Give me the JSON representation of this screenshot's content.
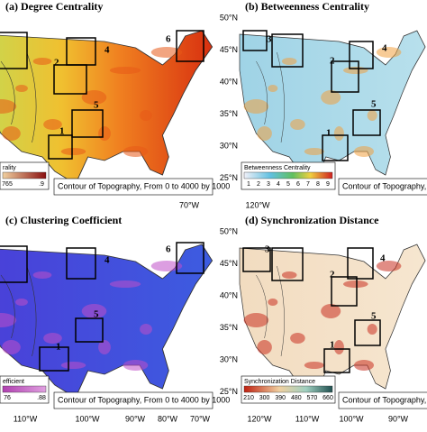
{
  "panels": [
    {
      "title": "(a) Degree Centrality",
      "region_labels": [
        "1",
        "2",
        "4",
        "5",
        "6"
      ],
      "legend": {
        "title": "rality",
        "ticks": [
          "765",
          ".9"
        ]
      },
      "contour_note": "Contour of Topography, From 0 to 4000 by 1000",
      "lon_labels": [
        "70°W"
      ],
      "lat_labels": []
    },
    {
      "title": "(b) Betweenness Centrality",
      "region_labels": [
        "1",
        "2",
        "3",
        "4",
        "5"
      ],
      "legend": {
        "title": "Betweenness Centrality",
        "ticks": [
          "1",
          "2",
          "3",
          "4",
          "5",
          "6",
          "7",
          "8",
          "9"
        ]
      },
      "contour_note": "Contour of Topography, Fro",
      "lon_labels": [
        "120°W"
      ],
      "lat_labels": [
        "50°N",
        "45°N",
        "40°N",
        "35°N",
        "30°N",
        "25°N"
      ]
    },
    {
      "title": "(c) Clustering Coefficient",
      "region_labels": [
        "1",
        "4",
        "5",
        "6"
      ],
      "legend": {
        "title": "efficient",
        "ticks": [
          "76",
          ".88"
        ]
      },
      "contour_note": "Contour of Topography, From 0 to 4000 by 1000",
      "lon_labels": [
        "110°W",
        "100°W",
        "90°W",
        "80°W",
        "70°W"
      ],
      "lat_labels": []
    },
    {
      "title": "(d) Synchronization Distance",
      "region_labels": [
        "1",
        "2",
        "3",
        "4",
        "5"
      ],
      "legend": {
        "title": "Synchronization Distance",
        "ticks": [
          "210",
          "300",
          "390",
          "480",
          "570",
          "660"
        ]
      },
      "contour_note": "Contour of Topography, Fro",
      "lon_labels": [
        "120°W",
        "110°W",
        "100°W",
        "90°W"
      ],
      "lat_labels": [
        "50°N",
        "45°N",
        "40°N",
        "35°N",
        "30°N",
        "25°N"
      ]
    }
  ]
}
